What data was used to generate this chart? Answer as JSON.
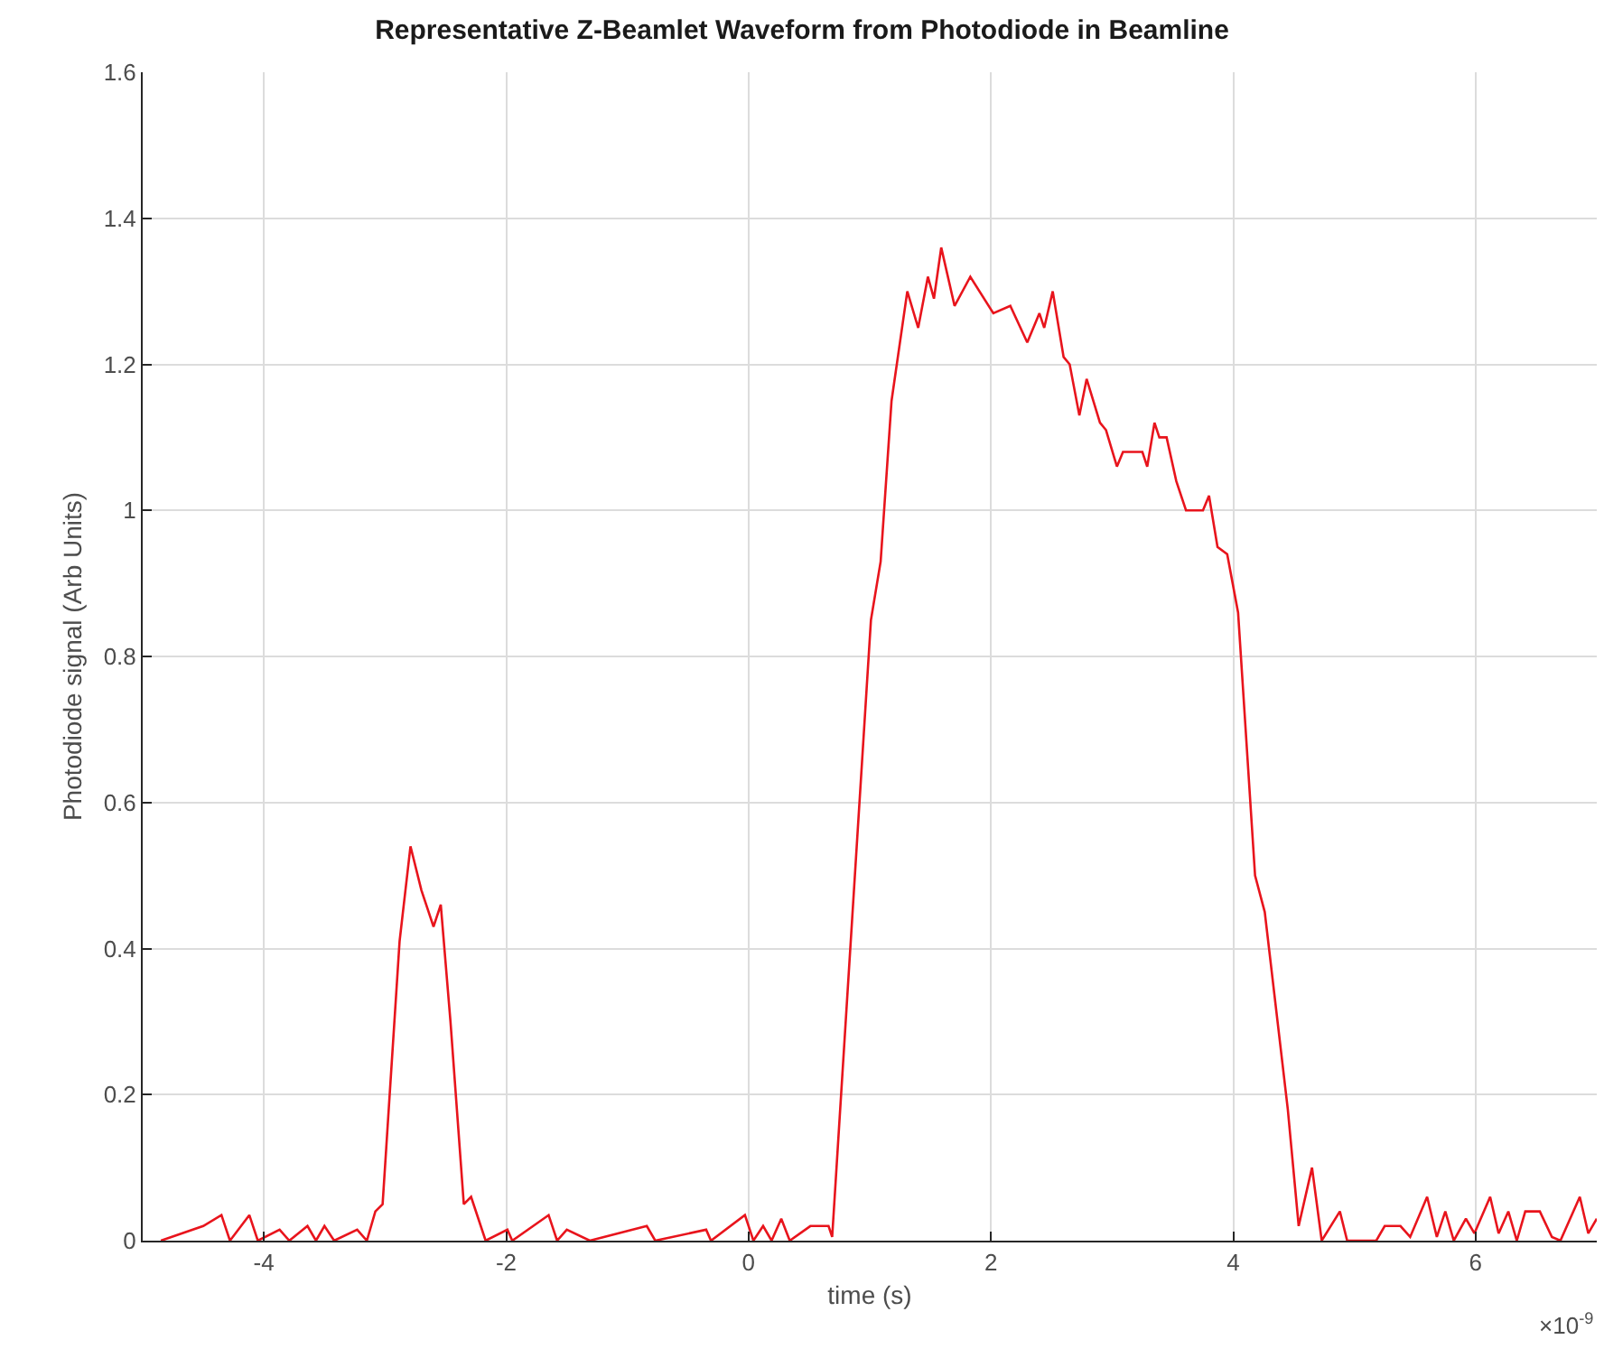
{
  "chart_data": {
    "type": "line",
    "title": "Representative Z-Beamlet Waveform from Photodiode in Beamline",
    "xlabel": "time (s)",
    "ylabel": "Photodiode signal (Arb Units)",
    "annotations": [
      "×10$^{-9}$"
    ],
    "series": [
      {
        "color": "#e8141c",
        "x": [
          -4.85,
          -4.5,
          -4.35,
          -4.28,
          -4.12,
          -4.05,
          -3.87,
          -3.79,
          -3.64,
          -3.57,
          -3.5,
          -3.42,
          -3.23,
          -3.15,
          -3.08,
          -3.02,
          -2.88,
          -2.79,
          -2.7,
          -2.6,
          -2.54,
          -2.46,
          -2.35,
          -2.29,
          -2.17,
          -1.99,
          -1.95,
          -1.65,
          -1.58,
          -1.5,
          -1.31,
          -0.84,
          -0.77,
          -0.35,
          -0.31,
          -0.03,
          0.04,
          0.12,
          0.19,
          0.27,
          0.34,
          0.51,
          0.66,
          0.69,
          1.01,
          1.09,
          1.18,
          1.31,
          1.4,
          1.48,
          1.53,
          1.59,
          1.7,
          1.83,
          2.02,
          2.16,
          2.3,
          2.4,
          2.44,
          2.51,
          2.6,
          2.65,
          2.73,
          2.79,
          2.9,
          2.95,
          3.04,
          3.09,
          3.25,
          3.29,
          3.35,
          3.39,
          3.45,
          3.53,
          3.61,
          3.75,
          3.8,
          3.87,
          3.95,
          4.04,
          4.18,
          4.26,
          4.45,
          4.54,
          4.65,
          4.73,
          4.88,
          4.94,
          5.18,
          5.25,
          5.38,
          5.46,
          5.6,
          5.68,
          5.75,
          5.82,
          5.92,
          5.99,
          6.12,
          6.19,
          6.27,
          6.34,
          6.41,
          6.53,
          6.63,
          6.7,
          6.86,
          6.93,
          7.0
        ],
        "values": [
          0,
          0.02,
          0.035,
          0,
          0.035,
          0,
          0.015,
          0,
          0.02,
          0,
          0.02,
          0,
          0.015,
          0,
          0.04,
          0.05,
          0.41,
          0.54,
          0.48,
          0.43,
          0.46,
          0.3,
          0.05,
          0.06,
          0,
          0.015,
          0,
          0.035,
          0,
          0.015,
          0,
          0.02,
          0,
          0.015,
          0,
          0.035,
          0,
          0.02,
          0,
          0.03,
          0,
          0.02,
          0.02,
          0.005,
          0.85,
          0.93,
          1.15,
          1.3,
          1.25,
          1.32,
          1.29,
          1.36,
          1.28,
          1.32,
          1.27,
          1.28,
          1.23,
          1.27,
          1.25,
          1.3,
          1.21,
          1.2,
          1.13,
          1.18,
          1.12,
          1.11,
          1.06,
          1.08,
          1.08,
          1.06,
          1.12,
          1.1,
          1.1,
          1.04,
          1.0,
          1.0,
          1.02,
          0.95,
          0.94,
          0.86,
          0.5,
          0.45,
          0.18,
          0.02,
          0.1,
          0,
          0.04,
          0,
          0,
          0.02,
          0.02,
          0.005,
          0.06,
          0.005,
          0.04,
          0,
          0.03,
          0.01,
          0.06,
          0.01,
          0.04,
          0,
          0.04,
          0.04,
          0.005,
          0,
          0.06,
          0.01,
          0.03
        ]
      }
    ],
    "xlim": [
      -5,
      7
    ],
    "xticks": [
      -4,
      -2,
      0,
      2,
      4,
      6
    ],
    "ylim": [
      0,
      1.6
    ],
    "yticks": [
      {
        "value": 0,
        "label": "0"
      },
      0.2,
      0.4,
      0.6,
      0.8,
      {
        "value": 1,
        "label": "1"
      },
      1.2,
      1.4,
      1.6
    ],
    "grid": true,
    "marker": "none",
    "line_style": "solid"
  }
}
